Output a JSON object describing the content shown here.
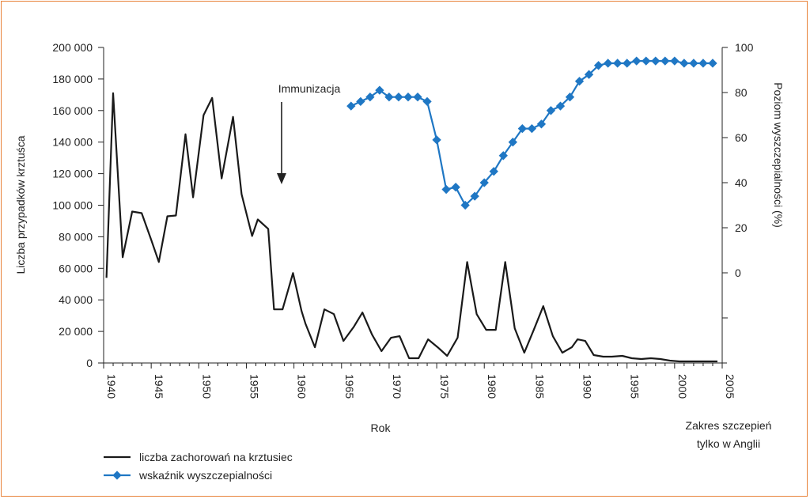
{
  "chart_data": {
    "type": "line",
    "xlabel": "Rok",
    "ylabel_left": "Liczba przypadków krztuśca",
    "ylabel_right": "Poziom wyszczepialności (%)",
    "annotation": "Immunizacja",
    "annotation_year": 1958.7,
    "note": [
      "Zakres szczepień",
      "tylko w Anglii"
    ],
    "x_ticks": [
      1940,
      1945,
      1950,
      1955,
      1960,
      1965,
      1970,
      1975,
      1980,
      1985,
      1990,
      1995,
      2000,
      2005
    ],
    "x_tick_labels": [
      "1940",
      "1945",
      "1950",
      "1955",
      "1960",
      "1965",
      "1970",
      "1975",
      "1980",
      "1985",
      "1990",
      "1995",
      "2000",
      "2005"
    ],
    "y_left_ticks": [
      0,
      20000,
      40000,
      60000,
      80000,
      100000,
      120000,
      140000,
      160000,
      180000,
      200000
    ],
    "y_left_tick_labels": [
      "0",
      "20 000",
      "40 000",
      "60 000",
      "80 000",
      "100 000",
      "120 000",
      "140 000",
      "160 000",
      "180 000",
      "200 000"
    ],
    "y_right_tick_labels": [
      "100",
      "80",
      "60",
      "40",
      "20",
      "0",
      ""
    ],
    "xlim": [
      1940,
      2005
    ],
    "ylim_left": [
      0,
      200000
    ],
    "ylim_right": [
      -40,
      100
    ],
    "series": [
      {
        "name": "liczba zachorowań na krztusiec",
        "color": "#1a1a1a",
        "axis": "left",
        "x": [
          1940.3,
          1941,
          1942,
          1943,
          1944,
          1945,
          1945.8,
          1946.7,
          1947.6,
          1948.6,
          1949.4,
          1950.5,
          1951.4,
          1952.4,
          1953.6,
          1954.5,
          1955.6,
          1956.2,
          1957.3,
          1957.9,
          1958.8,
          1959.9,
          1960.8,
          1961.2,
          1962.2,
          1963.2,
          1964.2,
          1965.2,
          1966.3,
          1967.2,
          1968.2,
          1969.2,
          1970.2,
          1971.1,
          1972.1,
          1973.1,
          1974.1,
          1975.1,
          1976.1,
          1977.2,
          1978.2,
          1979.2,
          1980.2,
          1981.2,
          1982.2,
          1983.2,
          1984.2,
          1985.2,
          1986.2,
          1987.2,
          1988.2,
          1989.2,
          1989.8,
          1990.6,
          1991.5,
          1992.5,
          1993.4,
          1994.5,
          1995.5,
          1996.5,
          1997.5,
          1998.5,
          1999.5,
          2000.5,
          2001.5,
          2002.5,
          2003.5,
          2004.5
        ],
        "y": [
          54000,
          171000,
          67000,
          96000,
          95000,
          78000,
          64000,
          93000,
          93500,
          145000,
          105000,
          157000,
          168000,
          117000,
          156000,
          107000,
          80500,
          91000,
          85000,
          34000,
          34000,
          57000,
          33000,
          25000,
          10000,
          34000,
          31000,
          14000,
          23000,
          32000,
          18000,
          7500,
          16000,
          17000,
          3000,
          3000,
          15000,
          10000,
          4500,
          16000,
          64000,
          31000,
          21000,
          21000,
          64000,
          22000,
          6500,
          21000,
          36000,
          17000,
          6500,
          10000,
          15000,
          14000,
          5000,
          4000,
          4000,
          4500,
          3000,
          2500,
          3000,
          2500,
          1500,
          1000,
          1000,
          1000,
          1000,
          1000
        ]
      },
      {
        "name": "wskaźnik wyszczepialności",
        "color": "#1f77c4",
        "axis": "right",
        "x": [
          1966,
          1967,
          1968,
          1969,
          1970,
          1971,
          1972,
          1973,
          1974,
          1975,
          1976,
          1977,
          1978,
          1979,
          1980,
          1981,
          1982,
          1983,
          1984,
          1985,
          1986,
          1987,
          1988,
          1989,
          1990,
          1991,
          1992,
          1993,
          1994,
          1995,
          1996,
          1997,
          1998,
          1999,
          2000,
          2001,
          2002,
          2003,
          2004
        ],
        "y": [
          74,
          76,
          78,
          81,
          78,
          78,
          78,
          78,
          76,
          59,
          37,
          38,
          30,
          34,
          40,
          45,
          52,
          58,
          64,
          64,
          66,
          72,
          74,
          78,
          85,
          88,
          92,
          93,
          93,
          93,
          94,
          94,
          94,
          94,
          94,
          93,
          93,
          93,
          93
        ]
      }
    ],
    "legend_position": "bottom-left"
  }
}
